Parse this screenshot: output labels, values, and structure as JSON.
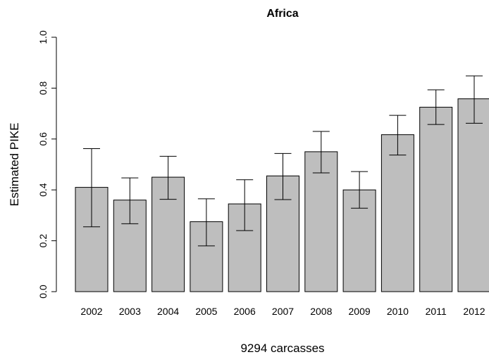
{
  "chart_data": {
    "type": "bar",
    "title": "Africa",
    "xlabel": "9294 carcasses",
    "ylabel": "Estimated PIKE",
    "ylim": [
      0,
      1.0
    ],
    "yticks": [
      "0.0",
      "0.2",
      "0.4",
      "0.6",
      "0.8",
      "1.0"
    ],
    "categories": [
      "2002",
      "2003",
      "2004",
      "2005",
      "2006",
      "2007",
      "2008",
      "2009",
      "2010",
      "2011",
      "2012"
    ],
    "values": [
      0.41,
      0.36,
      0.45,
      0.275,
      0.345,
      0.455,
      0.55,
      0.4,
      0.617,
      0.725,
      0.758
    ],
    "error_low": [
      0.255,
      0.267,
      0.363,
      0.18,
      0.24,
      0.362,
      0.467,
      0.328,
      0.537,
      0.657,
      0.662
    ],
    "error_high": [
      0.562,
      0.447,
      0.532,
      0.365,
      0.44,
      0.543,
      0.63,
      0.472,
      0.693,
      0.793,
      0.848
    ],
    "bar_color": "#bebebe",
    "grid": false
  }
}
